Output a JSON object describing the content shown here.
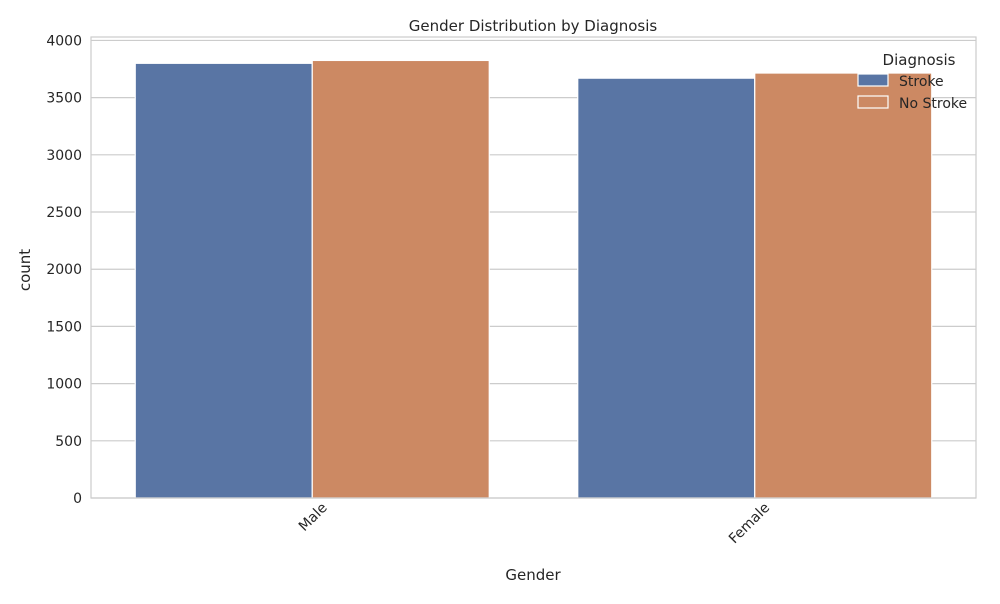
{
  "chart_data": {
    "type": "bar",
    "title": "Gender Distribution by Diagnosis",
    "xlabel": "Gender",
    "ylabel": "count",
    "categories": [
      "Male",
      "Female"
    ],
    "series": [
      {
        "name": "Stroke",
        "values": [
          3800,
          3670
        ],
        "color": "#5975a4"
      },
      {
        "name": "No Stroke",
        "values": [
          3825,
          3715
        ],
        "color": "#cc8963"
      }
    ],
    "ylim": [
      0,
      4030
    ],
    "yticks": [
      0,
      500,
      1000,
      1500,
      2000,
      2500,
      3000,
      3500,
      4000
    ],
    "grid": true,
    "legend": {
      "title": "Diagnosis",
      "placement": "top-right"
    },
    "xtick_rotation": -45
  }
}
